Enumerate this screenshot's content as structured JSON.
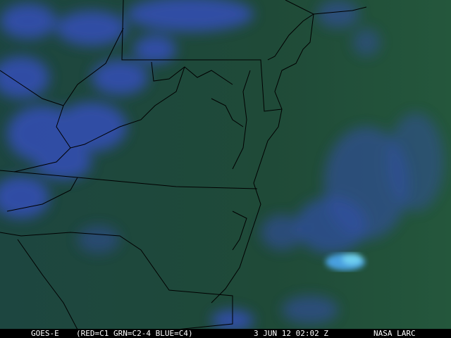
{
  "image": {
    "type": "satellite-imagery",
    "colors": {
      "land_sea": "#1f4a3c",
      "cloud": "#3550b8",
      "bright_cloud": "#60c8e8",
      "borders": "#000000"
    }
  },
  "caption": {
    "satellite": "GOES-E",
    "channels": "(RED=C1 GRN=C2-4 BLUE=C4)",
    "datetime": "3 JUN 12 02:02 Z",
    "source": "NASA LARC"
  }
}
